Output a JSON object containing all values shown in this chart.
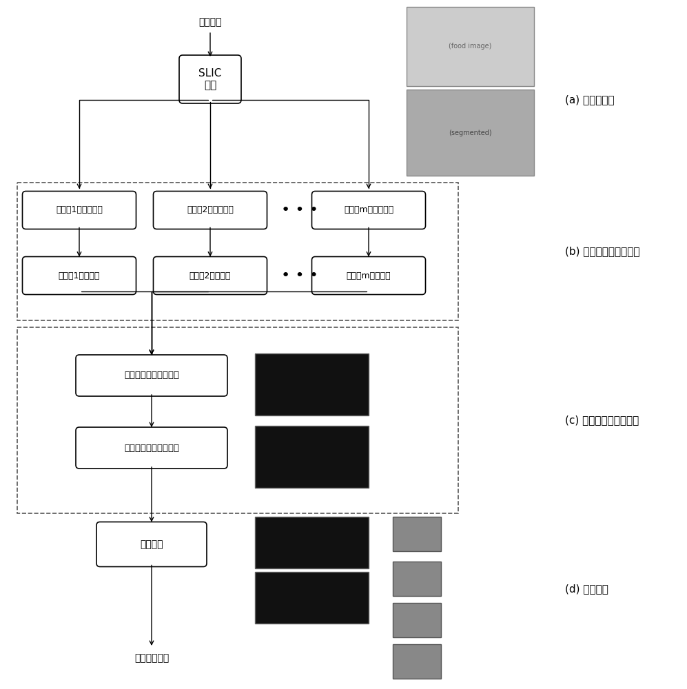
{
  "bg_color": "#ffffff",
  "title": "",
  "label_a": "(a) 超像素分割",
  "label_b": "(b) 多視角圖模型的構建",
  "label_c": "(c) 超像素點的排序檢測",
  "label_d": "(d) 餐具檢測",
  "box_top": "輸入圖像",
  "box_slic": "SLIC\n分割",
  "box_feat1": "提取第1類圖像特征",
  "box_feat2": "提取第2類圖像特征",
  "box_featm": "提取第m類圖像特征",
  "box_gen1": "生成第1類圖模型",
  "box_gen2": "生成第2類圖模型",
  "box_genm": "生成第m類圖模型",
  "box_rank1": "第一階段的多視角排序",
  "box_rank2": "第二階段的多視角排序",
  "box_seg": "餐具分割",
  "box_result": "餐具檢測結果",
  "dots": "• • •",
  "box_color": "#ffffff",
  "box_edge": "#000000",
  "arrow_color": "#000000",
  "dash_box_color": "#555555",
  "text_color": "#000000",
  "font_size_main": 10,
  "font_size_label": 11
}
